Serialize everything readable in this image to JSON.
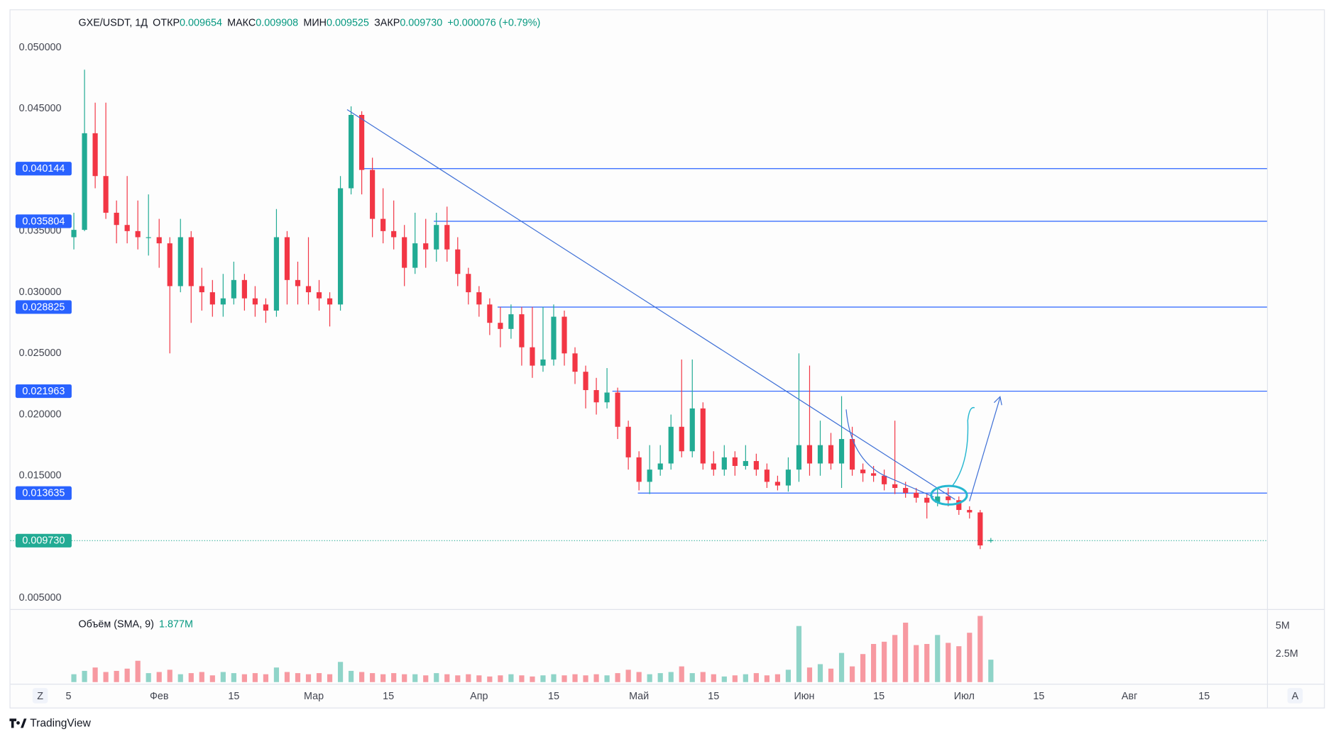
{
  "chart_data": {
    "type": "candlestick",
    "title": "GXE/USDT, 1Д",
    "header": [
      {
        "label": "ОТКР",
        "value": "0.009654"
      },
      {
        "label": "МАКС",
        "value": "0.009908"
      },
      {
        "label": "МИН",
        "value": "0.009525"
      },
      {
        "label": "ЗАКР",
        "value": "0.009730"
      }
    ],
    "change": "+0.000076 (+0.79%)",
    "colors": {
      "up": "#22ab94",
      "down": "#f23645",
      "level": "#2962ff"
    },
    "x": [
      16,
      18,
      20,
      22,
      24,
      26,
      28,
      30,
      32,
      34,
      36,
      38,
      40,
      42,
      44,
      46,
      48,
      50,
      52,
      54,
      56,
      58,
      60,
      62,
      64,
      66,
      68,
      70,
      72,
      74,
      76,
      78,
      80,
      82,
      84,
      86,
      88,
      90,
      92,
      94,
      96,
      98,
      100,
      102,
      104,
      106,
      108,
      110,
      112,
      114,
      116,
      118,
      120,
      122,
      124,
      126,
      128,
      130,
      132,
      134,
      136,
      138,
      140,
      142,
      144,
      146,
      148,
      150,
      152,
      154,
      156,
      158,
      160,
      162,
      164,
      166,
      168,
      170,
      172,
      174,
      176,
      178,
      180,
      182,
      184,
      186,
      188
    ],
    "open": [
      0.0345,
      0.0351,
      0.043,
      0.0395,
      0.0365,
      0.0355,
      0.035,
      0.0345,
      0.0345,
      0.034,
      0.0305,
      0.0345,
      0.0305,
      0.03,
      0.029,
      0.0295,
      0.031,
      0.0295,
      0.029,
      0.0285,
      0.0345,
      0.031,
      0.0305,
      0.03,
      0.0295,
      0.029,
      0.0385,
      0.0445,
      0.04,
      0.036,
      0.035,
      0.0345,
      0.032,
      0.034,
      0.0335,
      0.0355,
      0.0335,
      0.0315,
      0.03,
      0.029,
      0.0275,
      0.027,
      0.0282,
      0.0255,
      0.024,
      0.0245,
      0.028,
      0.025,
      0.0235,
      0.022,
      0.021,
      0.0218,
      0.019,
      0.0165,
      0.0145,
      0.0155,
      0.016,
      0.019,
      0.017,
      0.0205,
      0.016,
      0.0155,
      0.0165,
      0.0158,
      0.0162,
      0.0155,
      0.0145,
      0.0142,
      0.0155,
      0.0175,
      0.016,
      0.0175,
      0.016,
      0.018,
      0.0155,
      0.0152,
      0.015,
      0.0143,
      0.014,
      0.0136,
      0.0132,
      0.0128,
      0.0133,
      0.013,
      0.0122,
      0.012,
      0.009654
    ],
    "high": [
      0.0365,
      0.0482,
      0.0455,
      0.0455,
      0.0375,
      0.0395,
      0.0375,
      0.038,
      0.036,
      0.0345,
      0.036,
      0.035,
      0.032,
      0.031,
      0.0315,
      0.0325,
      0.0315,
      0.0305,
      0.0295,
      0.0368,
      0.035,
      0.0325,
      0.0345,
      0.031,
      0.03,
      0.0395,
      0.0452,
      0.0448,
      0.041,
      0.0385,
      0.0375,
      0.0355,
      0.0365,
      0.036,
      0.0365,
      0.037,
      0.0345,
      0.032,
      0.0305,
      0.0295,
      0.0288,
      0.029,
      0.0288,
      0.0288,
      0.0288,
      0.029,
      0.0285,
      0.0255,
      0.024,
      0.023,
      0.0238,
      0.0222,
      0.0195,
      0.017,
      0.0175,
      0.0175,
      0.02,
      0.0245,
      0.0245,
      0.021,
      0.017,
      0.0175,
      0.017,
      0.0175,
      0.0168,
      0.016,
      0.015,
      0.0165,
      0.025,
      0.024,
      0.0195,
      0.0185,
      0.0215,
      0.019,
      0.016,
      0.0158,
      0.0155,
      0.0195,
      0.0145,
      0.014,
      0.0135,
      0.014,
      0.014,
      0.0133,
      0.0125,
      0.0122,
      0.009908
    ],
    "low": [
      0.0335,
      0.035,
      0.0385,
      0.036,
      0.034,
      0.034,
      0.0335,
      0.033,
      0.032,
      0.025,
      0.03,
      0.0275,
      0.0285,
      0.028,
      0.028,
      0.029,
      0.0285,
      0.028,
      0.0275,
      0.028,
      0.029,
      0.029,
      0.029,
      0.0285,
      0.0272,
      0.0285,
      0.038,
      0.038,
      0.0345,
      0.034,
      0.0335,
      0.0305,
      0.0315,
      0.032,
      0.0325,
      0.0325,
      0.0305,
      0.029,
      0.028,
      0.0265,
      0.0255,
      0.0262,
      0.024,
      0.023,
      0.0235,
      0.024,
      0.024,
      0.0225,
      0.0205,
      0.02,
      0.0205,
      0.018,
      0.0155,
      0.0138,
      0.0135,
      0.015,
      0.0155,
      0.0165,
      0.0165,
      0.0155,
      0.015,
      0.015,
      0.015,
      0.0155,
      0.015,
      0.014,
      0.0138,
      0.0137,
      0.0145,
      0.015,
      0.015,
      0.0155,
      0.014,
      0.015,
      0.0145,
      0.0145,
      0.0138,
      0.0135,
      0.0132,
      0.0128,
      0.0115,
      0.0125,
      0.0125,
      0.0118,
      0.0115,
      0.009,
      0.009525
    ],
    "close": [
      0.0351,
      0.043,
      0.0395,
      0.0365,
      0.0355,
      0.035,
      0.0345,
      0.0345,
      0.034,
      0.0305,
      0.0345,
      0.0305,
      0.03,
      0.029,
      0.0295,
      0.031,
      0.0295,
      0.029,
      0.0285,
      0.0345,
      0.031,
      0.0305,
      0.03,
      0.0295,
      0.029,
      0.0385,
      0.0445,
      0.04,
      0.036,
      0.035,
      0.0345,
      0.032,
      0.034,
      0.0335,
      0.0355,
      0.0335,
      0.0315,
      0.03,
      0.029,
      0.0275,
      0.027,
      0.0282,
      0.0255,
      0.024,
      0.0245,
      0.028,
      0.025,
      0.0235,
      0.022,
      0.021,
      0.0218,
      0.019,
      0.0165,
      0.0145,
      0.0155,
      0.016,
      0.019,
      0.017,
      0.0205,
      0.016,
      0.0155,
      0.0165,
      0.0158,
      0.0162,
      0.0155,
      0.0145,
      0.0142,
      0.0155,
      0.0175,
      0.016,
      0.0175,
      0.016,
      0.018,
      0.0155,
      0.0152,
      0.015,
      0.0143,
      0.014,
      0.0136,
      0.0132,
      0.0128,
      0.0133,
      0.013,
      0.0122,
      0.012,
      0.0093,
      0.00973
    ],
    "volume": [
      700000,
      1000000,
      1300000,
      900000,
      1000000,
      1200000,
      1900000,
      800000,
      900000,
      1100000,
      700000,
      800000,
      900000,
      600000,
      900000,
      800000,
      700000,
      800000,
      700000,
      1300000,
      900000,
      800000,
      700000,
      800000,
      700000,
      1800000,
      1000000,
      900000,
      800000,
      700000,
      800000,
      700000,
      700000,
      600000,
      800000,
      700000,
      600000,
      700000,
      600000,
      500000,
      600000,
      700000,
      600000,
      500000,
      600000,
      700000,
      600000,
      700000,
      600000,
      700000,
      600000,
      800000,
      1100000,
      900000,
      700000,
      800000,
      900000,
      1400000,
      800000,
      900000,
      700000,
      500000,
      600000,
      700000,
      800000,
      600000,
      700000,
      1100000,
      5000000,
      1300000,
      1600000,
      1200000,
      2600000,
      1400000,
      2500000,
      3400000,
      3600000,
      4200000,
      5300000,
      3300000,
      3400000,
      4200000,
      3500000,
      3200000,
      4400000,
      5900000,
      2000000
    ],
    "xlim": [
      4.1,
      239.8
    ],
    "xticks": [
      {
        "value": 15,
        "label": "5"
      },
      {
        "value": 32,
        "label": "Фев"
      },
      {
        "value": 46,
        "label": "15"
      },
      {
        "value": 61,
        "label": "Мар"
      },
      {
        "value": 75,
        "label": "15"
      },
      {
        "value": 92,
        "label": "Апр"
      },
      {
        "value": 106,
        "label": "15"
      },
      {
        "value": 122,
        "label": "Май"
      },
      {
        "value": 136,
        "label": "15"
      },
      {
        "value": 153,
        "label": "Июн"
      },
      {
        "value": 167,
        "label": "15"
      },
      {
        "value": 183,
        "label": "Июл"
      },
      {
        "value": 197,
        "label": "15"
      },
      {
        "value": 214,
        "label": "Авг"
      },
      {
        "value": 228,
        "label": "15"
      }
    ],
    "ylim": [
      0.0041,
      0.05306
    ],
    "yticks": [
      {
        "value": 0.05,
        "label": "0.050000"
      },
      {
        "value": 0.045,
        "label": "0.045000"
      },
      {
        "value": 0.035,
        "label": "0.035000"
      },
      {
        "value": 0.03,
        "label": "0.030000"
      },
      {
        "value": 0.025,
        "label": "0.025000"
      },
      {
        "value": 0.02,
        "label": "0.020000"
      },
      {
        "value": 0.015,
        "label": "0.015000"
      },
      {
        "value": 0.005,
        "label": "0.005000"
      }
    ],
    "levels": [
      0.040144,
      0.035804,
      0.028825,
      0.021963,
      0.013635
    ],
    "last_price": {
      "value": 0.00973,
      "label": "0.009730"
    },
    "volume_pane": {
      "title": "Объём (SMA, 9)",
      "value": "1.877M",
      "ylim": [
        0,
        6440000
      ],
      "yticks": [
        {
          "value": 5000000,
          "label": "5M"
        },
        {
          "value": 2500000,
          "label": "2.5M"
        }
      ]
    }
  },
  "buttons": [
    "Z",
    "A"
  ],
  "branding": "TradingView"
}
